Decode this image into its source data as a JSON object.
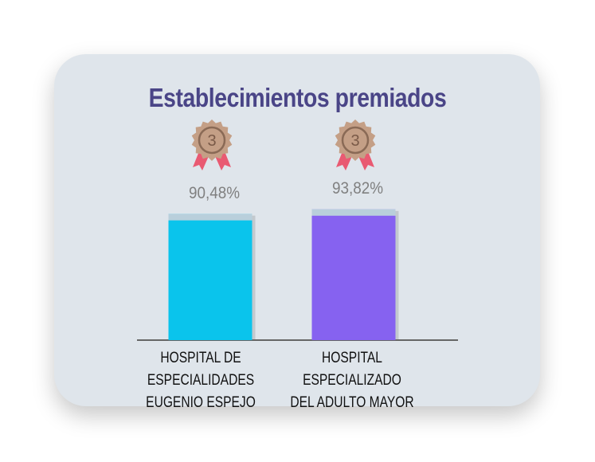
{
  "chart_data": {
    "type": "bar",
    "title": "Establecimientos premiados",
    "categories": [
      [
        "HOSPITAL DE ESPECIALIDADES",
        "EUGENIO ESPEJO"
      ],
      [
        "HOSPITAL ESPECIALIZADO",
        "DEL ADULTO MAYOR"
      ]
    ],
    "values": [
      90.48,
      93.82
    ],
    "value_labels": [
      "90,48%",
      "93,82%"
    ],
    "medals": [
      "3",
      "3"
    ],
    "ylim": [
      0,
      100
    ],
    "grid": false,
    "colors": [
      "#0ac4ec",
      "#8662f0"
    ],
    "bar_cap_color": "#b9cfdb",
    "medal_color": "#c49f86",
    "ribbon_color": "#e95a72"
  }
}
